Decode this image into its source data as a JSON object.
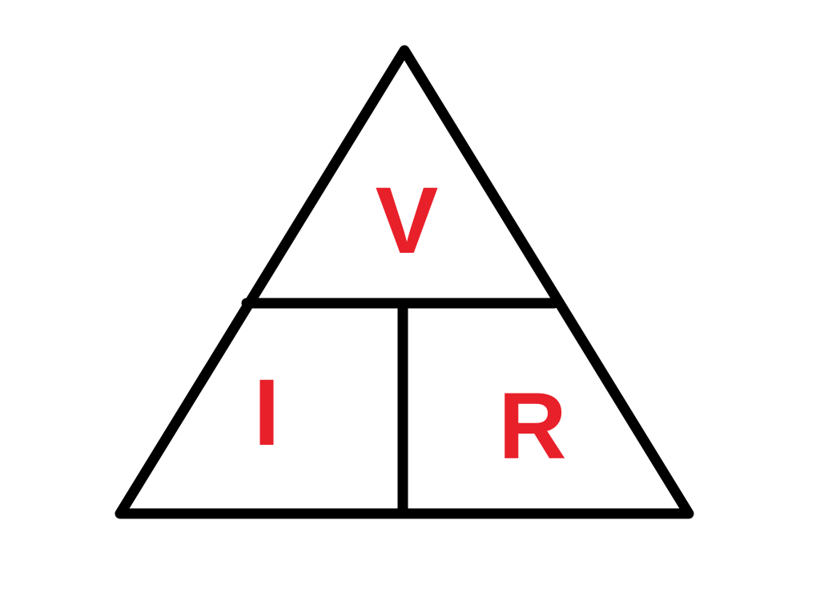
{
  "diagram": {
    "top_label": "V",
    "bottom_left_label": "I",
    "bottom_right_label": "R"
  },
  "colors": {
    "line": "#000000",
    "label": "#e8202a",
    "background": "#ffffff"
  }
}
